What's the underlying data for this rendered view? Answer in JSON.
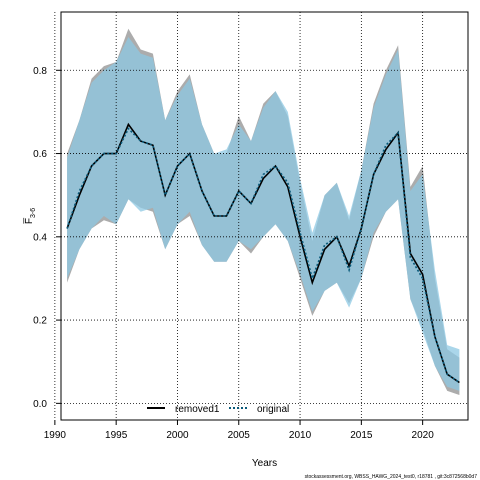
{
  "chart_data": {
    "type": "area",
    "xlabel": "Years",
    "ylabel": "F̅",
    "ylabel_subscript": "3-6",
    "xlim": [
      1990.5,
      2023.7
    ],
    "ylim": [
      -0.04,
      0.94
    ],
    "x_ticks": [
      1990,
      1995,
      2000,
      2005,
      2010,
      2015,
      2020
    ],
    "y_ticks": [
      0.0,
      0.2,
      0.4,
      0.6,
      0.8
    ],
    "y_tick_labels": [
      "0.0",
      "0.2",
      "0.4",
      "0.6",
      "0.8"
    ],
    "grid": true,
    "legend_position": "bottom-center",
    "legend": [
      {
        "label": "removed1",
        "style": "solid",
        "color": "#000000"
      },
      {
        "label": "original",
        "style": "dotted",
        "color": "#0a5a7a"
      }
    ],
    "colors": {
      "removed1_band": "#9e9e9e",
      "original_band": "#8ec8e3",
      "original_line": "#0a5a7a",
      "removed1_line": "#000000"
    },
    "x": [
      1991,
      1992,
      1993,
      1994,
      1995,
      1996,
      1997,
      1998,
      1999,
      2000,
      2001,
      2002,
      2003,
      2004,
      2005,
      2006,
      2007,
      2008,
      2009,
      2010,
      2011,
      2012,
      2013,
      2014,
      2015,
      2016,
      2017,
      2018,
      2019,
      2020,
      2021,
      2022,
      2023
    ],
    "series": [
      {
        "name": "removed1",
        "values": [
          0.42,
          0.5,
          0.57,
          0.6,
          0.6,
          0.67,
          0.63,
          0.62,
          0.5,
          0.57,
          0.6,
          0.51,
          0.45,
          0.45,
          0.51,
          0.48,
          0.54,
          0.57,
          0.52,
          0.4,
          0.29,
          0.37,
          0.4,
          0.33,
          0.42,
          0.55,
          0.61,
          0.65,
          0.36,
          0.31,
          0.16,
          0.07,
          0.05
        ],
        "lower": [
          0.29,
          0.37,
          0.42,
          0.44,
          0.43,
          0.49,
          0.47,
          0.46,
          0.37,
          0.43,
          0.45,
          0.38,
          0.34,
          0.34,
          0.39,
          0.36,
          0.4,
          0.43,
          0.39,
          0.3,
          0.21,
          0.27,
          0.29,
          0.24,
          0.3,
          0.4,
          0.46,
          0.49,
          0.25,
          0.18,
          0.09,
          0.03,
          0.02
        ],
        "upper": [
          0.6,
          0.68,
          0.78,
          0.81,
          0.82,
          0.9,
          0.85,
          0.84,
          0.68,
          0.75,
          0.79,
          0.67,
          0.6,
          0.6,
          0.69,
          0.63,
          0.72,
          0.75,
          0.69,
          0.53,
          0.39,
          0.5,
          0.53,
          0.44,
          0.56,
          0.72,
          0.8,
          0.86,
          0.52,
          0.57,
          0.3,
          0.13,
          0.11
        ]
      },
      {
        "name": "original",
        "values": [
          0.42,
          0.51,
          0.57,
          0.6,
          0.6,
          0.66,
          0.63,
          0.62,
          0.5,
          0.57,
          0.6,
          0.51,
          0.45,
          0.45,
          0.51,
          0.48,
          0.55,
          0.57,
          0.53,
          0.41,
          0.3,
          0.38,
          0.4,
          0.32,
          0.42,
          0.55,
          0.62,
          0.65,
          0.35,
          0.3,
          0.16,
          0.07,
          0.05
        ],
        "lower": [
          0.3,
          0.37,
          0.42,
          0.45,
          0.43,
          0.49,
          0.46,
          0.47,
          0.37,
          0.43,
          0.46,
          0.38,
          0.34,
          0.34,
          0.39,
          0.37,
          0.4,
          0.43,
          0.39,
          0.31,
          0.22,
          0.27,
          0.29,
          0.23,
          0.3,
          0.41,
          0.46,
          0.49,
          0.25,
          0.17,
          0.09,
          0.04,
          0.03
        ],
        "upper": [
          0.59,
          0.68,
          0.77,
          0.8,
          0.82,
          0.88,
          0.84,
          0.83,
          0.68,
          0.74,
          0.78,
          0.67,
          0.6,
          0.61,
          0.67,
          0.63,
          0.71,
          0.75,
          0.7,
          0.54,
          0.41,
          0.5,
          0.53,
          0.45,
          0.56,
          0.71,
          0.79,
          0.85,
          0.51,
          0.55,
          0.32,
          0.14,
          0.13
        ]
      }
    ]
  },
  "footer": {
    "note": "stockassessment.org, WBSS_HAWG_2024_test0, r18781 , git:3c872568b0d7"
  }
}
